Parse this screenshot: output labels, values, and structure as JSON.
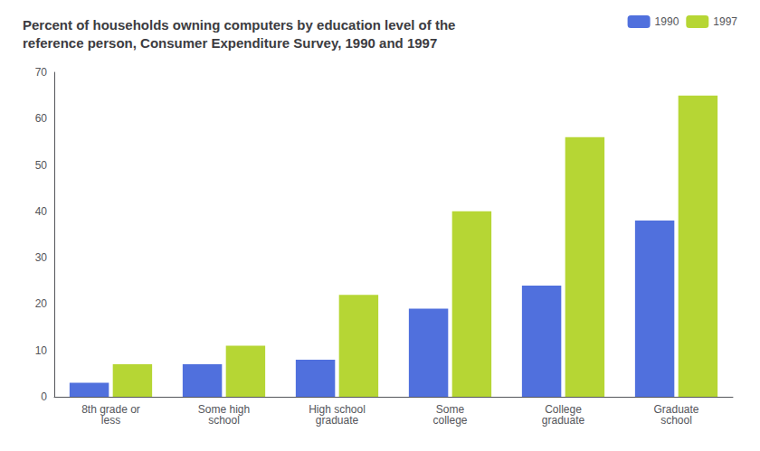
{
  "chart_data": {
    "type": "bar",
    "title": "Percent of households owning computers by education level of the\nreference person, Consumer Expenditure Survey, 1990 and 1997",
    "categories": [
      "8th grade or\nless",
      "Some high\nschool",
      "High school\ngraduate",
      "Some\ncollege",
      "College\ngraduate",
      "Graduate\nschool"
    ],
    "series": [
      {
        "name": "1990",
        "values": [
          3,
          7,
          8,
          19,
          24,
          38
        ]
      },
      {
        "name": "1997",
        "values": [
          7,
          11,
          22,
          40,
          56,
          65
        ]
      }
    ],
    "ylim": [
      0,
      70
    ],
    "yticks": [
      0,
      10,
      20,
      30,
      40,
      50,
      60,
      70
    ],
    "grid": false,
    "legend": "upper right"
  }
}
